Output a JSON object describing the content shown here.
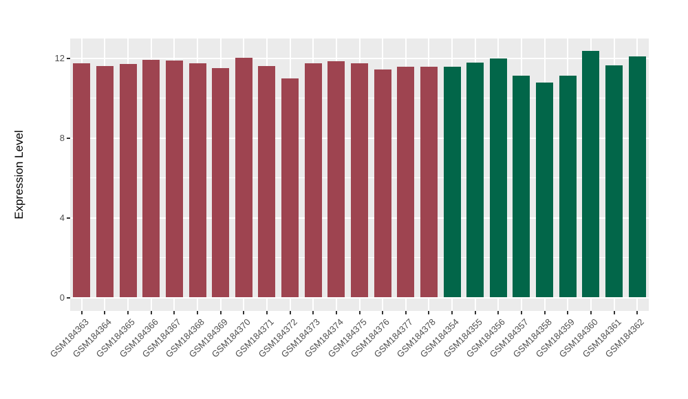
{
  "chart_data": {
    "type": "bar",
    "title": "",
    "xlabel": "",
    "ylabel": "Expression Level",
    "categories": [
      "GSM184363",
      "GSM184364",
      "GSM184365",
      "GSM184366",
      "GSM184367",
      "GSM184368",
      "GSM184369",
      "GSM184370",
      "GSM184371",
      "GSM184372",
      "GSM184373",
      "GSM184374",
      "GSM184375",
      "GSM184376",
      "GSM184377",
      "GSM184378",
      "GSM184354",
      "GSM184355",
      "GSM184356",
      "GSM184357",
      "GSM184358",
      "GSM184359",
      "GSM184360",
      "GSM184361",
      "GSM184362"
    ],
    "values": [
      11.77,
      11.63,
      11.71,
      11.94,
      11.89,
      11.75,
      11.51,
      12.03,
      11.63,
      11.01,
      11.77,
      11.86,
      11.75,
      11.46,
      11.57,
      11.6,
      11.58,
      11.8,
      12.0,
      11.14,
      10.78,
      11.14,
      12.37,
      11.66,
      12.1
    ],
    "bar_groups": [
      "red",
      "red",
      "red",
      "red",
      "red",
      "red",
      "red",
      "red",
      "red",
      "red",
      "red",
      "red",
      "red",
      "red",
      "red",
      "red",
      "green",
      "green",
      "green",
      "green",
      "green",
      "green",
      "green",
      "green",
      "green"
    ],
    "group_colors": {
      "red": "#9E4450",
      "green": "#026649"
    },
    "y_ticks": [
      0,
      4,
      8,
      12
    ],
    "y_minor_ticks": [
      2,
      6,
      10
    ],
    "ylim": [
      -0.67,
      13.0
    ],
    "grid": true,
    "legend": "none",
    "panel_background": "#EBEBEB",
    "grid_color": "#FFFFFF",
    "tick_label_color": "#4d4d4d",
    "tick_mark_color": "#333333"
  }
}
